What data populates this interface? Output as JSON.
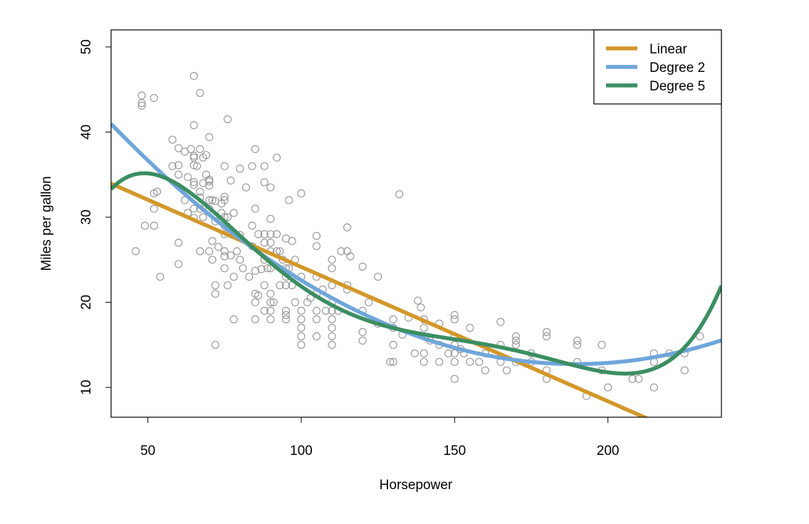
{
  "chart_data": {
    "type": "scatter",
    "title": "",
    "xlabel": "Horsepower",
    "ylabel": "Miles per gallon",
    "xlim": [
      38,
      237
    ],
    "ylim": [
      6.5,
      52
    ],
    "x_ticks": [
      50,
      100,
      150,
      200
    ],
    "y_ticks": [
      10,
      20,
      30,
      40,
      50
    ],
    "grid": false,
    "legend_position": "top-right",
    "points": [
      [
        46,
        26
      ],
      [
        48,
        43.1
      ],
      [
        48,
        43.4
      ],
      [
        48,
        44.3
      ],
      [
        49,
        29
      ],
      [
        52,
        44
      ],
      [
        52,
        29
      ],
      [
        52,
        31
      ],
      [
        52,
        32.8
      ],
      [
        53,
        33
      ],
      [
        54,
        23
      ],
      [
        58,
        39.1
      ],
      [
        58,
        36
      ],
      [
        60,
        36.1
      ],
      [
        60,
        38.1
      ],
      [
        60,
        35
      ],
      [
        60,
        27
      ],
      [
        60,
        24.5
      ],
      [
        62,
        37.7
      ],
      [
        62,
        32
      ],
      [
        63,
        34.7
      ],
      [
        63,
        30.5
      ],
      [
        64,
        38
      ],
      [
        65,
        37.2
      ],
      [
        65,
        37
      ],
      [
        65,
        46.6
      ],
      [
        65,
        40.8
      ],
      [
        65,
        34.1
      ],
      [
        65,
        36.1
      ],
      [
        65,
        29.9
      ],
      [
        65,
        33.8
      ],
      [
        65,
        31
      ],
      [
        66,
        36
      ],
      [
        67,
        44.6
      ],
      [
        67,
        38
      ],
      [
        67,
        33
      ],
      [
        67,
        32.3
      ],
      [
        67,
        31
      ],
      [
        67,
        26
      ],
      [
        68,
        37
      ],
      [
        68,
        34
      ],
      [
        68,
        30
      ],
      [
        69,
        37.3
      ],
      [
        69,
        35
      ],
      [
        70,
        39.4
      ],
      [
        70,
        34.2
      ],
      [
        70,
        34.4
      ],
      [
        70,
        33.7
      ],
      [
        70,
        32
      ],
      [
        70,
        31
      ],
      [
        70,
        26
      ],
      [
        71,
        27.2
      ],
      [
        71,
        25
      ],
      [
        71,
        32
      ],
      [
        72,
        31.9
      ],
      [
        72,
        29.5
      ],
      [
        72,
        22
      ],
      [
        72,
        21
      ],
      [
        72,
        15
      ],
      [
        73,
        26.5
      ],
      [
        74,
        31.6
      ],
      [
        74,
        30.5
      ],
      [
        75,
        36
      ],
      [
        75,
        32.4
      ],
      [
        75,
        32
      ],
      [
        75,
        30
      ],
      [
        75,
        28
      ],
      [
        75,
        26
      ],
      [
        75,
        29
      ],
      [
        75,
        24
      ],
      [
        75,
        25.4
      ],
      [
        76,
        41.5
      ],
      [
        76,
        30
      ],
      [
        76,
        22
      ],
      [
        77,
        34.3
      ],
      [
        77,
        25.5
      ],
      [
        78,
        30.5
      ],
      [
        78,
        23
      ],
      [
        78,
        18
      ],
      [
        79,
        26
      ],
      [
        80,
        35.7
      ],
      [
        80,
        27.9
      ],
      [
        80,
        25
      ],
      [
        81,
        24
      ],
      [
        82,
        33.5
      ],
      [
        83,
        23
      ],
      [
        84,
        36
      ],
      [
        84,
        29
      ],
      [
        84,
        26.6
      ],
      [
        85,
        38
      ],
      [
        85,
        31
      ],
      [
        85,
        23.7
      ],
      [
        85,
        21
      ],
      [
        85,
        18
      ],
      [
        85,
        20
      ],
      [
        86,
        28
      ],
      [
        86,
        20.8
      ],
      [
        87,
        23.9
      ],
      [
        88,
        36
      ],
      [
        88,
        34.1
      ],
      [
        88,
        28
      ],
      [
        88,
        27
      ],
      [
        88,
        25
      ],
      [
        88,
        22
      ],
      [
        88,
        19
      ],
      [
        89,
        24
      ],
      [
        90,
        33.5
      ],
      [
        90,
        29.8
      ],
      [
        90,
        28
      ],
      [
        90,
        27
      ],
      [
        90,
        26
      ],
      [
        90,
        24
      ],
      [
        90,
        21
      ],
      [
        90,
        20
      ],
      [
        90,
        19
      ],
      [
        90,
        18
      ],
      [
        91,
        20
      ],
      [
        92,
        37
      ],
      [
        92,
        26
      ],
      [
        92,
        28
      ],
      [
        93,
        22
      ],
      [
        93,
        26
      ],
      [
        94,
        25
      ],
      [
        95,
        27.5
      ],
      [
        95,
        24
      ],
      [
        95,
        23
      ],
      [
        95,
        22
      ],
      [
        95,
        19
      ],
      [
        95,
        18.5
      ],
      [
        95,
        18
      ],
      [
        96,
        32
      ],
      [
        96,
        24
      ],
      [
        97,
        27.2
      ],
      [
        97,
        23
      ],
      [
        97,
        22
      ],
      [
        98,
        25
      ],
      [
        98,
        20
      ],
      [
        100,
        32.8
      ],
      [
        100,
        23
      ],
      [
        100,
        19
      ],
      [
        100,
        18
      ],
      [
        100,
        17
      ],
      [
        100,
        16
      ],
      [
        100,
        15
      ],
      [
        102,
        20
      ],
      [
        103,
        20.5
      ],
      [
        105,
        27.8
      ],
      [
        105,
        26.6
      ],
      [
        105,
        23
      ],
      [
        105,
        21
      ],
      [
        105,
        19
      ],
      [
        105,
        18
      ],
      [
        105,
        16
      ],
      [
        107,
        21.5
      ],
      [
        108,
        19
      ],
      [
        110,
        24
      ],
      [
        110,
        25
      ],
      [
        110,
        22
      ],
      [
        110,
        20
      ],
      [
        110,
        19
      ],
      [
        110,
        18
      ],
      [
        110,
        17
      ],
      [
        110,
        16
      ],
      [
        110,
        15
      ],
      [
        112,
        19
      ],
      [
        113,
        26
      ],
      [
        115,
        28.8
      ],
      [
        115,
        26
      ],
      [
        115,
        22
      ],
      [
        115,
        21.5
      ],
      [
        116,
        25.4
      ],
      [
        120,
        24.2
      ],
      [
        120,
        19
      ],
      [
        120,
        16.5
      ],
      [
        120,
        15.5
      ],
      [
        122,
        20
      ],
      [
        125,
        23
      ],
      [
        125,
        17.5
      ],
      [
        129,
        13
      ],
      [
        130,
        18
      ],
      [
        130,
        17
      ],
      [
        130,
        15
      ],
      [
        130,
        13
      ],
      [
        132,
        32.7
      ],
      [
        133,
        16.2
      ],
      [
        135,
        18.2
      ],
      [
        137,
        14
      ],
      [
        138,
        20.2
      ],
      [
        139,
        19.4
      ],
      [
        140,
        18
      ],
      [
        140,
        17
      ],
      [
        140,
        16
      ],
      [
        140,
        14
      ],
      [
        140,
        13
      ],
      [
        142,
        15.5
      ],
      [
        145,
        17.5
      ],
      [
        145,
        15
      ],
      [
        145,
        13
      ],
      [
        148,
        14
      ],
      [
        150,
        18.5
      ],
      [
        150,
        18
      ],
      [
        150,
        16
      ],
      [
        150,
        15
      ],
      [
        150,
        14
      ],
      [
        150,
        13
      ],
      [
        150,
        11
      ],
      [
        152,
        14.5
      ],
      [
        153,
        14
      ],
      [
        155,
        17
      ],
      [
        155,
        13
      ],
      [
        158,
        13
      ],
      [
        160,
        14
      ],
      [
        160,
        12
      ],
      [
        165,
        17.7
      ],
      [
        165,
        15
      ],
      [
        165,
        13
      ],
      [
        167,
        12
      ],
      [
        170,
        16
      ],
      [
        170,
        15.5
      ],
      [
        170,
        15
      ],
      [
        170,
        13
      ],
      [
        175,
        14
      ],
      [
        175,
        13
      ],
      [
        180,
        16.5
      ],
      [
        180,
        16
      ],
      [
        180,
        12
      ],
      [
        180,
        11
      ],
      [
        190,
        15.5
      ],
      [
        190,
        15
      ],
      [
        190,
        13
      ],
      [
        193,
        9
      ],
      [
        198,
        15
      ],
      [
        198,
        12
      ],
      [
        200,
        10
      ],
      [
        208,
        11
      ],
      [
        210,
        11
      ],
      [
        215,
        14
      ],
      [
        215,
        13
      ],
      [
        215,
        10
      ],
      [
        220,
        14
      ],
      [
        225,
        14
      ],
      [
        225,
        12
      ],
      [
        230,
        16
      ]
    ],
    "series": [
      {
        "name": "Linear",
        "color": "#D3982A",
        "degree": 1,
        "coefficients": [
          39.936,
          -0.15784
        ]
      },
      {
        "name": "Degree 2",
        "color": "#6FA6DA",
        "degree": 2,
        "coefficients": [
          56.9,
          -0.4662,
          0.0012305
        ]
      },
      {
        "name": "Degree 5",
        "color": "#3C8E62",
        "degree": 5,
        "coefficients": [
          -32.23,
          3.7,
          -0.07142,
          0.0005931,
          -2.281e-06,
          3.33e-09
        ]
      }
    ]
  }
}
